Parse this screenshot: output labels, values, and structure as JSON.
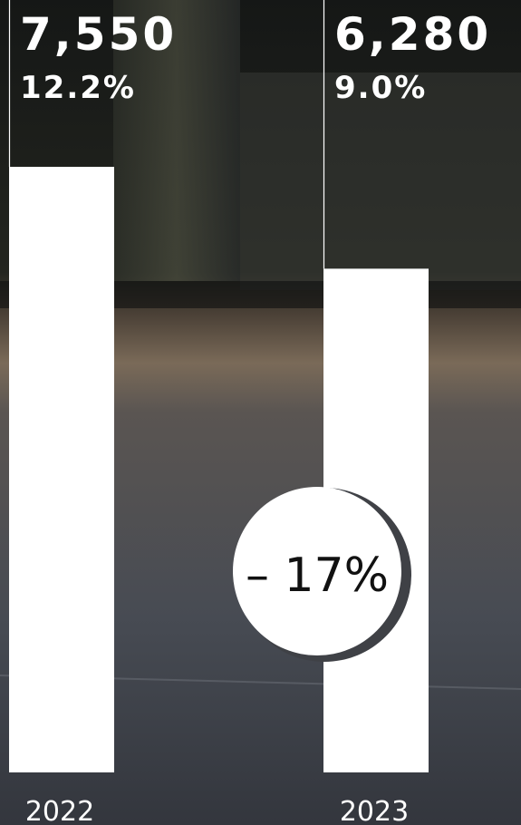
{
  "chart_data": {
    "type": "bar",
    "categories": [
      "2022",
      "2023"
    ],
    "values": [
      7550,
      6280
    ],
    "value_labels": [
      "7,550",
      "6,280"
    ],
    "color": "#ffffff",
    "shares": [
      12.2,
      9.0
    ],
    "share_labels": [
      "12.2%",
      "9.0%"
    ],
    "change": {
      "value": -17,
      "label": "– 17%"
    }
  }
}
